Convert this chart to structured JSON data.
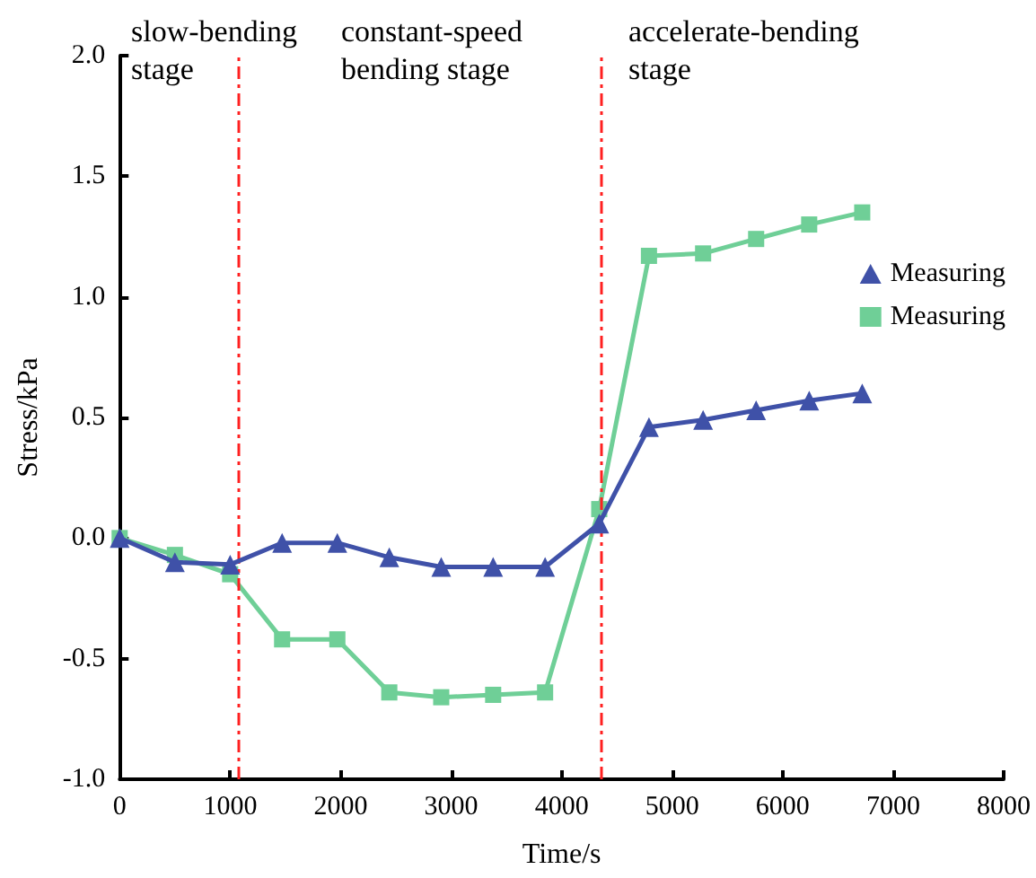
{
  "chart_data": {
    "type": "line",
    "xlabel": "Time/s",
    "ylabel": "Stress/kPa",
    "xlim": [
      0,
      8000
    ],
    "xticks": [
      0,
      1000,
      2000,
      3000,
      4000,
      5000,
      6000,
      7000,
      8000
    ],
    "ylim": [
      -1.0,
      2.0
    ],
    "yticks": [
      {
        "value": -1.0,
        "label": "-1.0"
      },
      {
        "value": -0.5,
        "label": "-0.5"
      },
      {
        "value": 0,
        "label": "0.0"
      },
      {
        "value": 0.5,
        "label": "0.5"
      },
      {
        "value": 1.0,
        "label": "1.0"
      },
      {
        "value": 1.5,
        "label": "1.5"
      },
      {
        "value": 2.0,
        "label": "2.0"
      }
    ],
    "x": [
      0,
      500,
      1000,
      1470,
      1970,
      2440,
      2910,
      3380,
      3850,
      4340,
      4790,
      5280,
      5760,
      6240,
      6720
    ],
    "series": [
      {
        "name": "Measuring",
        "color": "#3f51a8",
        "marker": "triangle",
        "values": [
          0,
          -0.1,
          -0.11,
          -0.02,
          -0.02,
          -0.08,
          -0.12,
          -0.12,
          -0.12,
          0.06,
          0.46,
          0.49,
          0.53,
          0.57,
          0.6
        ]
      },
      {
        "name": "Measuring",
        "color": "#6fcf97",
        "marker": "square",
        "values": [
          0,
          -0.07,
          -0.15,
          -0.42,
          -0.42,
          -0.64,
          -0.66,
          -0.65,
          -0.64,
          0.12,
          1.17,
          1.18,
          1.24,
          1.3,
          1.35
        ]
      }
    ],
    "ref_lines": [
      {
        "axis": "x",
        "value": 1080,
        "color": "#ff2020",
        "line_style": "dashed"
      },
      {
        "axis": "x",
        "value": 4350,
        "color": "#ff2020",
        "line_style": "dashed"
      }
    ],
    "annotations": [
      "slow-bending\nstage",
      "constant-speed\nbending stage",
      "accelerate-bending\nstage"
    ],
    "grid": false,
    "legend": "right"
  }
}
